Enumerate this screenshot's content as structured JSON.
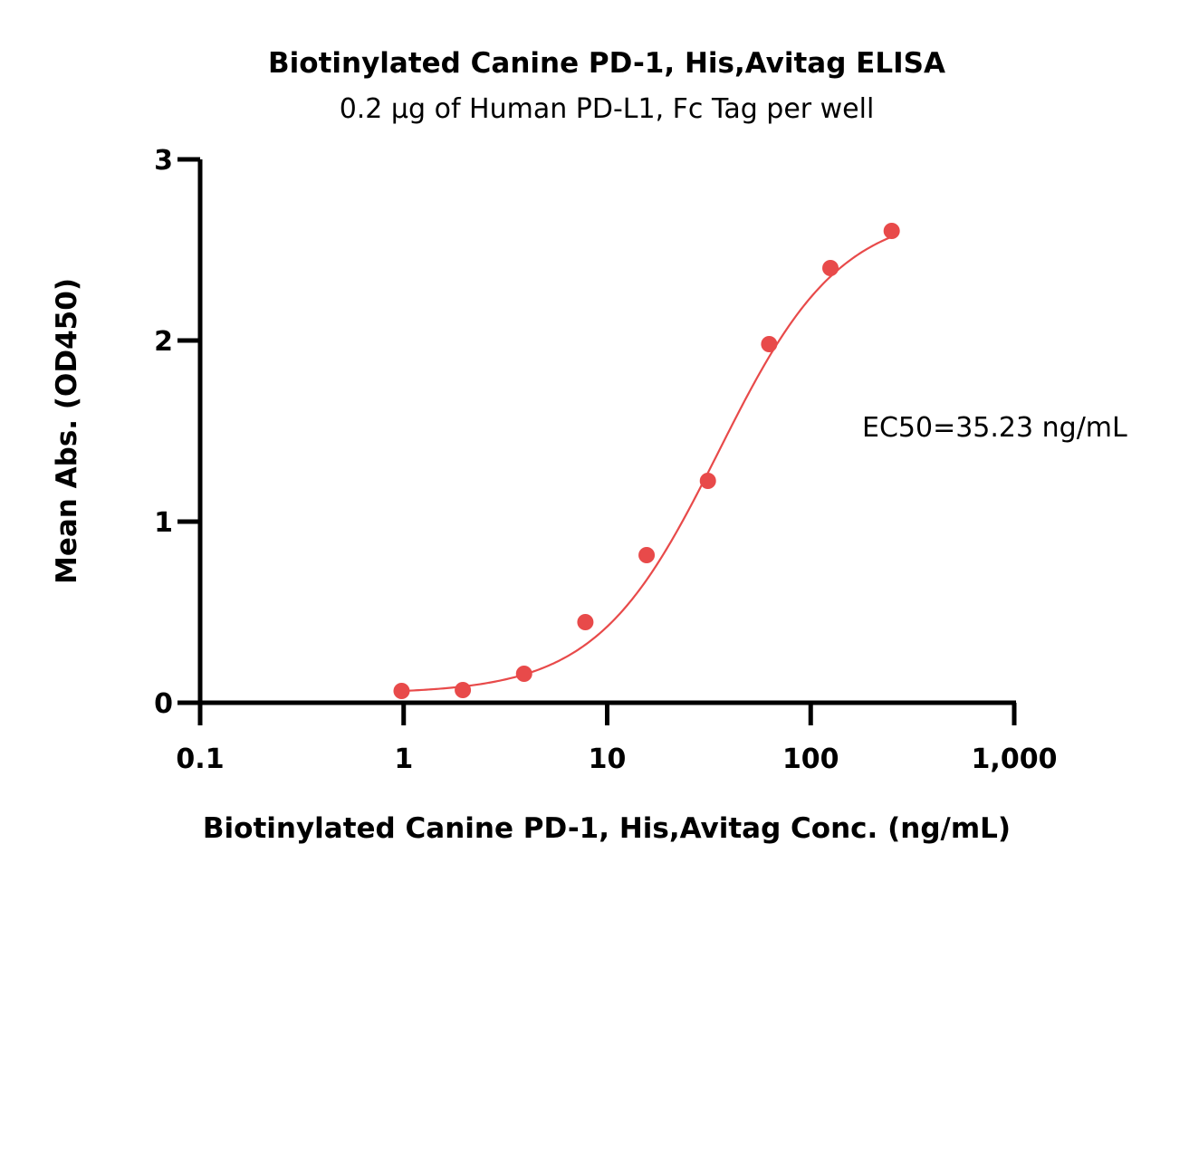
{
  "chart_data": {
    "type": "scatter",
    "title": "Biotinylated Canine PD-1, His,Avitag ELISA",
    "subtitle": "0.2 μg of Human PD-L1, Fc Tag per well",
    "xlabel": "Biotinylated Canine PD-1, His,Avitag Conc. (ng/mL)",
    "ylabel": "Mean Abs. (OD450)",
    "xscale": "log",
    "xlim": [
      0.1,
      1000
    ],
    "ylim": [
      0,
      3
    ],
    "x_ticks": [
      0.1,
      1,
      10,
      100,
      1000
    ],
    "x_tick_labels": [
      "0.1",
      "1",
      "10",
      "100",
      "1,000"
    ],
    "y_ticks": [
      0,
      1,
      2,
      3
    ],
    "y_tick_labels": [
      "0",
      "1",
      "2",
      "3"
    ],
    "grid": false,
    "legend": "none",
    "series": [
      {
        "color": "#e84a4a",
        "x": [
          0.977,
          1.953,
          3.906,
          7.813,
          15.625,
          31.25,
          62.5,
          125,
          250
        ],
        "y": [
          0.065,
          0.07,
          0.16,
          0.445,
          0.815,
          1.225,
          1.98,
          2.4,
          2.605
        ],
        "fit": {
          "model": "4PL",
          "bottom": 0.05,
          "top": 2.72,
          "ec50": 35.23,
          "hill": 1.45,
          "x_range": [
            0.977,
            250
          ]
        }
      }
    ],
    "annotations": [
      {
        "text": "EC50=35.23 ng/mL"
      }
    ]
  }
}
